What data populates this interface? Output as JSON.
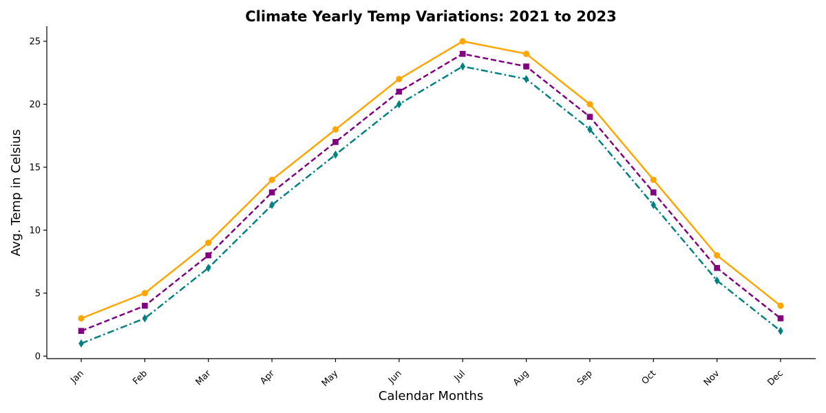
{
  "chart_data": {
    "type": "line",
    "title": "Climate Yearly Temp Variations: 2021 to 2023",
    "xlabel": "Calendar Months",
    "ylabel": "Avg. Temp in Celsius",
    "categories": [
      "Jan",
      "Feb",
      "Mar",
      "Apr",
      "May",
      "Jun",
      "Jul",
      "Aug",
      "Sep",
      "Oct",
      "Nov",
      "Dec"
    ],
    "ylim": [
      -0.2,
      26.2
    ],
    "yticks": [
      0,
      5,
      10,
      15,
      20,
      25
    ],
    "grid": false,
    "legend": false,
    "series": [
      {
        "values": [
          3,
          5,
          9,
          14,
          18,
          22,
          25,
          24,
          20,
          14,
          8,
          4
        ],
        "color": "#FFA500",
        "linestyle": "solid",
        "marker": "circle"
      },
      {
        "values": [
          2,
          4,
          8,
          13,
          17,
          21,
          24,
          23,
          19,
          13,
          7,
          3
        ],
        "color": "#800080",
        "linestyle": "dashed",
        "marker": "square"
      },
      {
        "values": [
          1,
          3,
          7,
          12,
          16,
          20,
          23,
          22,
          18,
          12,
          6,
          2
        ],
        "color": "#008080",
        "linestyle": "dashdot",
        "marker": "diamond"
      }
    ]
  }
}
